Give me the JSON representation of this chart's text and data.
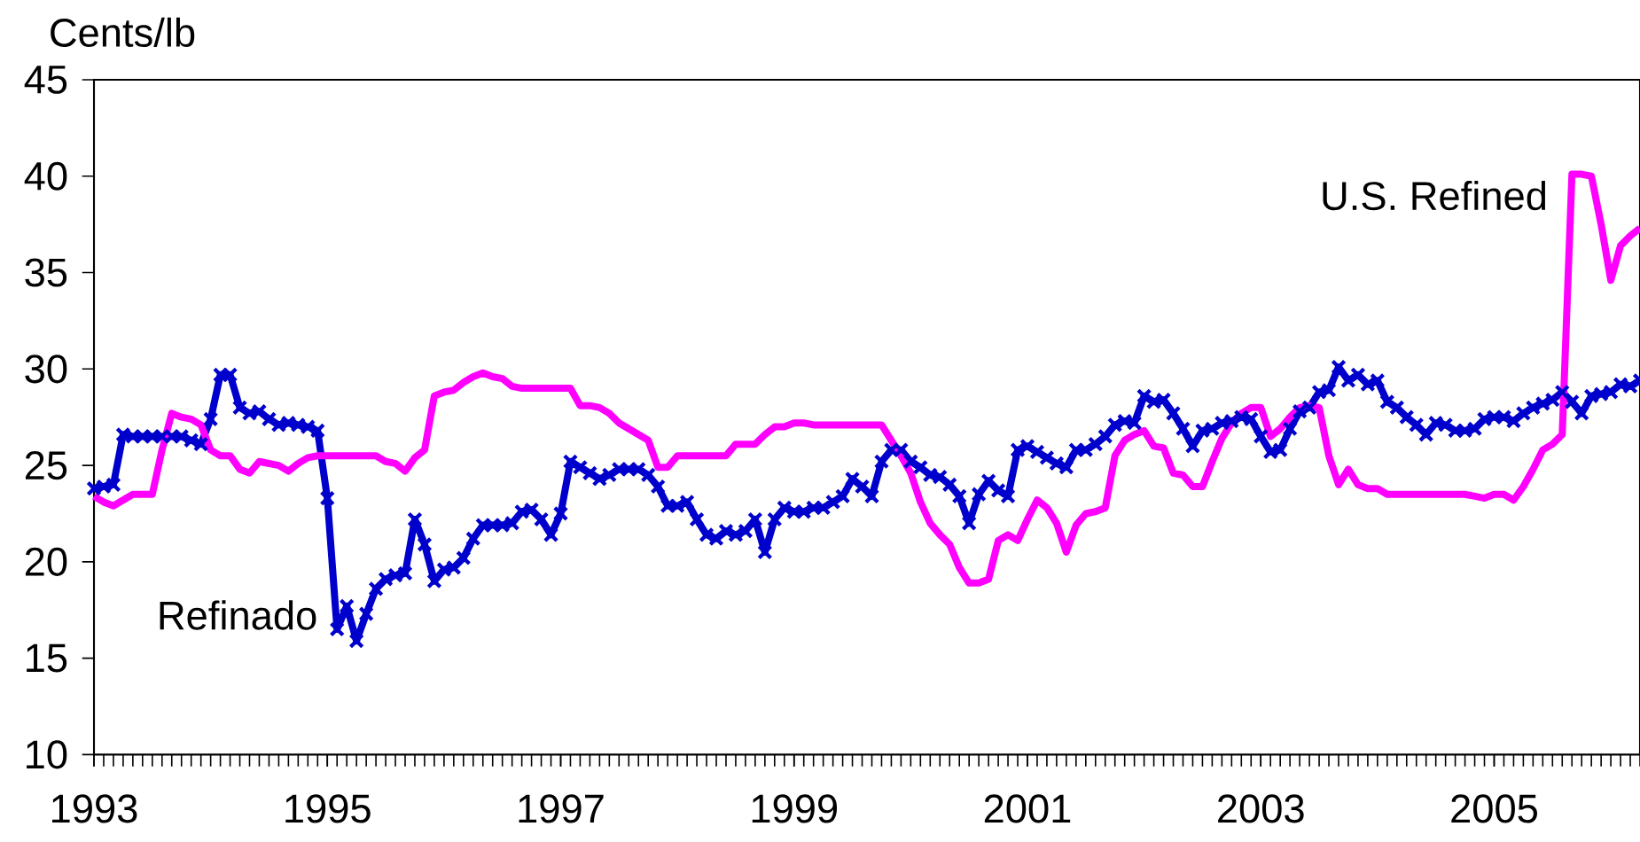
{
  "chart_data": {
    "type": "line",
    "ylabel": "Cents/lb",
    "xlim": [
      "1993-01",
      "2006-04"
    ],
    "xticks": [
      "1993",
      "1995",
      "1997",
      "1999",
      "2001",
      "2003",
      "2005"
    ],
    "ylim": [
      10,
      45
    ],
    "yticks": [
      10,
      15,
      20,
      25,
      30,
      35,
      40,
      45
    ],
    "x": [
      "1993-01",
      "1993-02",
      "1993-03",
      "1993-04",
      "1993-05",
      "1993-06",
      "1993-07",
      "1993-08",
      "1993-09",
      "1993-10",
      "1993-11",
      "1993-12",
      "1994-01",
      "1994-02",
      "1994-03",
      "1994-04",
      "1994-05",
      "1994-06",
      "1994-07",
      "1994-08",
      "1994-09",
      "1994-10",
      "1994-11",
      "1994-12",
      "1995-01",
      "1995-02",
      "1995-03",
      "1995-04",
      "1995-05",
      "1995-06",
      "1995-07",
      "1995-08",
      "1995-09",
      "1995-10",
      "1995-11",
      "1995-12",
      "1996-01",
      "1996-02",
      "1996-03",
      "1996-04",
      "1996-05",
      "1996-06",
      "1996-07",
      "1996-08",
      "1996-09",
      "1996-10",
      "1996-11",
      "1996-12",
      "1997-01",
      "1997-02",
      "1997-03",
      "1997-04",
      "1997-05",
      "1997-06",
      "1997-07",
      "1997-08",
      "1997-09",
      "1997-10",
      "1997-11",
      "1997-12",
      "1998-01",
      "1998-02",
      "1998-03",
      "1998-04",
      "1998-05",
      "1998-06",
      "1998-07",
      "1998-08",
      "1998-09",
      "1998-10",
      "1998-11",
      "1998-12",
      "1999-01",
      "1999-02",
      "1999-03",
      "1999-04",
      "1999-05",
      "1999-06",
      "1999-07",
      "1999-08",
      "1999-09",
      "1999-10",
      "1999-11",
      "1999-12",
      "2000-01",
      "2000-02",
      "2000-03",
      "2000-04",
      "2000-05",
      "2000-06",
      "2000-07",
      "2000-08",
      "2000-09",
      "2000-10",
      "2000-11",
      "2000-12",
      "2001-01",
      "2001-02",
      "2001-03",
      "2001-04",
      "2001-05",
      "2001-06",
      "2001-07",
      "2001-08",
      "2001-09",
      "2001-10",
      "2001-11",
      "2001-12",
      "2002-01",
      "2002-02",
      "2002-03",
      "2002-04",
      "2002-05",
      "2002-06",
      "2002-07",
      "2002-08",
      "2002-09",
      "2002-10",
      "2002-11",
      "2002-12",
      "2003-01",
      "2003-02",
      "2003-03",
      "2003-04",
      "2003-05",
      "2003-06",
      "2003-07",
      "2003-08",
      "2003-09",
      "2003-10",
      "2003-11",
      "2003-12",
      "2004-01",
      "2004-02",
      "2004-03",
      "2004-04",
      "2004-05",
      "2004-06",
      "2004-07",
      "2004-08",
      "2004-09",
      "2004-10",
      "2004-11",
      "2004-12",
      "2005-01",
      "2005-02",
      "2005-03",
      "2005-04",
      "2005-05",
      "2005-06",
      "2005-07",
      "2005-08",
      "2005-09",
      "2005-10",
      "2005-11",
      "2005-12",
      "2006-01",
      "2006-02",
      "2006-03",
      "2006-04"
    ],
    "series": [
      {
        "name": "Refinado",
        "color": "#0000cc",
        "marker": "cross",
        "values": [
          23.8,
          23.9,
          24.0,
          26.6,
          26.5,
          26.5,
          26.5,
          26.5,
          26.5,
          26.5,
          26.3,
          26.1,
          27.4,
          29.7,
          29.7,
          28.0,
          27.7,
          27.8,
          27.4,
          27.1,
          27.2,
          27.1,
          27.0,
          26.8,
          23.3,
          16.5,
          17.7,
          15.9,
          17.3,
          18.6,
          19.1,
          19.3,
          19.4,
          22.2,
          20.9,
          19.0,
          19.6,
          19.7,
          20.2,
          21.2,
          21.9,
          21.9,
          21.9,
          22.0,
          22.6,
          22.7,
          22.2,
          21.4,
          22.5,
          25.2,
          24.9,
          24.6,
          24.3,
          24.5,
          24.8,
          24.8,
          24.8,
          24.5,
          23.9,
          22.9,
          22.9,
          23.1,
          22.2,
          21.4,
          21.2,
          21.6,
          21.4,
          21.6,
          22.2,
          20.5,
          22.2,
          22.8,
          22.6,
          22.6,
          22.8,
          22.8,
          23.1,
          23.4,
          24.3,
          23.9,
          23.4,
          25.2,
          25.8,
          25.8,
          25.2,
          24.9,
          24.5,
          24.4,
          24.0,
          23.4,
          22.0,
          23.5,
          24.2,
          23.7,
          23.4,
          25.8,
          26.0,
          25.7,
          25.4,
          25.1,
          24.9,
          25.8,
          25.8,
          26.1,
          26.5,
          27.1,
          27.3,
          27.2,
          28.6,
          28.3,
          28.4,
          27.7,
          26.9,
          26.0,
          26.8,
          26.9,
          27.2,
          27.3,
          27.5,
          27.4,
          26.5,
          25.7,
          25.8,
          26.9,
          27.8,
          28.0,
          28.8,
          28.9,
          30.1,
          29.4,
          29.7,
          29.2,
          29.4,
          28.3,
          28.0,
          27.5,
          27.1,
          26.6,
          27.2,
          27.1,
          26.8,
          26.8,
          26.9,
          27.4,
          27.5,
          27.5,
          27.3,
          27.7,
          28.0,
          28.2,
          28.4,
          28.8,
          28.3,
          27.7,
          28.6,
          28.7,
          28.8,
          29.2,
          29.1,
          29.4
        ]
      },
      {
        "name": "U.S. Refined",
        "color": "#ff00ff",
        "marker": "none",
        "values": [
          23.4,
          23.1,
          22.9,
          23.2,
          23.5,
          23.5,
          23.5,
          25.8,
          27.7,
          27.5,
          27.4,
          27.1,
          25.8,
          25.5,
          25.5,
          24.8,
          24.6,
          25.2,
          25.1,
          25.0,
          24.7,
          25.1,
          25.4,
          25.5,
          25.5,
          25.5,
          25.5,
          25.5,
          25.5,
          25.5,
          25.2,
          25.1,
          24.7,
          25.4,
          25.8,
          28.6,
          28.8,
          28.9,
          29.3,
          29.6,
          29.8,
          29.6,
          29.5,
          29.1,
          29.0,
          29.0,
          29.0,
          29.0,
          29.0,
          29.0,
          28.1,
          28.1,
          28.0,
          27.7,
          27.2,
          26.9,
          26.6,
          26.3,
          24.9,
          24.9,
          25.5,
          25.5,
          25.5,
          25.5,
          25.5,
          25.5,
          26.1,
          26.1,
          26.1,
          26.6,
          27.0,
          27.0,
          27.2,
          27.2,
          27.1,
          27.1,
          27.1,
          27.1,
          27.1,
          27.1,
          27.1,
          27.1,
          26.3,
          25.5,
          24.6,
          23.1,
          22.0,
          21.4,
          20.9,
          19.7,
          18.9,
          18.9,
          19.1,
          21.1,
          21.4,
          21.1,
          22.2,
          23.2,
          22.8,
          22.0,
          20.5,
          21.9,
          22.5,
          22.6,
          22.8,
          25.5,
          26.3,
          26.6,
          26.8,
          26.0,
          25.9,
          24.6,
          24.5,
          23.9,
          23.9,
          25.2,
          26.4,
          27.2,
          27.7,
          28.0,
          28.0,
          26.5,
          26.9,
          27.5,
          28.0,
          28.1,
          28.0,
          25.5,
          24.0,
          24.8,
          24.0,
          23.8,
          23.8,
          23.5,
          23.5,
          23.5,
          23.5,
          23.5,
          23.5,
          23.5,
          23.5,
          23.5,
          23.4,
          23.3,
          23.5,
          23.5,
          23.2,
          23.9,
          24.8,
          25.8,
          26.1,
          26.6,
          40.1,
          40.1,
          40.0,
          37.5,
          34.6,
          36.4,
          36.9,
          37.3
        ]
      }
    ]
  }
}
